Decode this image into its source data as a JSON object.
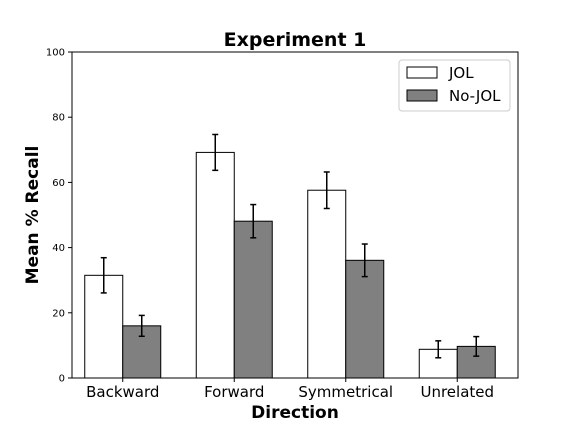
{
  "chart_data": {
    "type": "bar",
    "title": "Experiment 1",
    "xlabel": "Direction",
    "ylabel": "Mean % Recall",
    "ylim": [
      0,
      100
    ],
    "yticks": [
      "0",
      "20",
      "40",
      "60",
      "80",
      "100"
    ],
    "categories": [
      "Backward",
      "Forward",
      "Symmetrical",
      "Unrelated"
    ],
    "series": [
      {
        "name": "JOL",
        "color": "#ffffff",
        "values": [
          31.5,
          69.2,
          57.6,
          8.8
        ],
        "errors": [
          5.4,
          5.5,
          5.6,
          2.6
        ]
      },
      {
        "name": "No-JOL",
        "color": "#808080",
        "values": [
          16.0,
          48.1,
          36.1,
          9.7
        ],
        "errors": [
          3.2,
          5.1,
          5.0,
          3.0
        ]
      }
    ],
    "legend_position": "top-right",
    "grid": false
  }
}
